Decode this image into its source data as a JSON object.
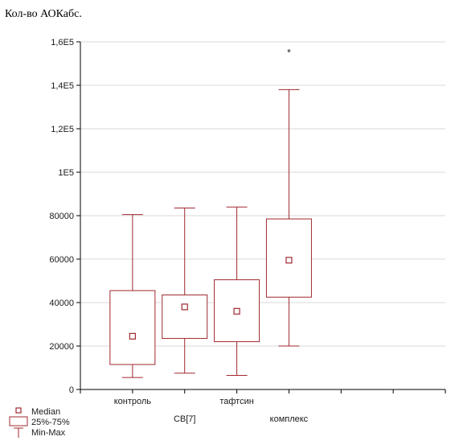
{
  "chart_data": {
    "type": "box",
    "title": "Кол-во АОКабс.",
    "xlabel": "",
    "ylabel": "",
    "ylim": [
      0,
      160000
    ],
    "y_ticks": [
      {
        "value": 0,
        "label": "0"
      },
      {
        "value": 20000,
        "label": "20000"
      },
      {
        "value": 40000,
        "label": "40000"
      },
      {
        "value": 60000,
        "label": "60000"
      },
      {
        "value": 80000,
        "label": "80000"
      },
      {
        "value": 100000,
        "label": "1E5"
      },
      {
        "value": 120000,
        "label": "1,2E5"
      },
      {
        "value": 140000,
        "label": "1,4E5"
      },
      {
        "value": 160000,
        "label": "1,6E5"
      }
    ],
    "x_positions": [
      0,
      1,
      2,
      3,
      4,
      5,
      6,
      7
    ],
    "categories": [
      {
        "label": "контроль",
        "x": 1,
        "min": 5500,
        "q1": 11500,
        "median": 24500,
        "q3": 45500,
        "max": 80500,
        "marker": ""
      },
      {
        "label": "СВ[7]",
        "x": 2,
        "min": 7500,
        "q1": 23500,
        "median": 38000,
        "q3": 43500,
        "max": 83500,
        "marker": ""
      },
      {
        "label": "тафтсин",
        "x": 3,
        "min": 6500,
        "q1": 22000,
        "median": 36000,
        "q3": 50500,
        "max": 84000,
        "marker": ""
      },
      {
        "label": "комплекс",
        "x": 4,
        "min": 20000,
        "q1": 42500,
        "median": 59500,
        "q3": 78500,
        "max": 138000,
        "marker": "*"
      }
    ],
    "legend": {
      "placement": "bottom-left",
      "items": [
        {
          "symbol": "median-square",
          "label": "Median"
        },
        {
          "symbol": "box",
          "label": "25%-75%"
        },
        {
          "symbol": "whisker",
          "label": "Min-Max"
        }
      ]
    },
    "grid": true,
    "colors": {
      "series": "#a0282f",
      "axis": "#000000",
      "grid": "#d9d9d9"
    }
  }
}
